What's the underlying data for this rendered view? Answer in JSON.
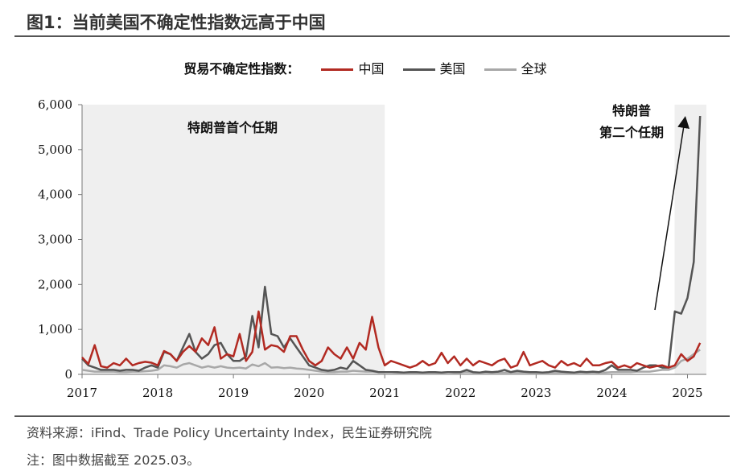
{
  "figure": {
    "title": "图1：当前美国不确定性指数远高于中国",
    "source": "资料来源：iFind、Trade Policy Uncertainty Index，民生证券研究院",
    "note": "注：图中数据截至 2025.03。"
  },
  "colors": {
    "china": "#b22a22",
    "usa": "#555555",
    "global": "#a8a8a8",
    "shade": "#efefef",
    "axis": "#777777"
  },
  "chart_data": {
    "type": "line",
    "title": "",
    "legend_title": "贸易不确定性指数：",
    "legend_position": "top",
    "xlabel": "",
    "ylabel": "",
    "xlim": [
      2017,
      2025.25
    ],
    "ylim": [
      0,
      6000
    ],
    "x_ticks": [
      2017,
      2018,
      2019,
      2020,
      2021,
      2022,
      2023,
      2024,
      2025
    ],
    "x_tick_labels": [
      "2017",
      "2018",
      "2019",
      "2020",
      "2021",
      "2022",
      "2023",
      "2024",
      "2025"
    ],
    "y_ticks": [
      0,
      1000,
      2000,
      3000,
      4000,
      5000,
      6000
    ],
    "y_tick_labels": [
      "0",
      "1,000",
      "2,000",
      "3,000",
      "4,000",
      "5,000",
      "6,000"
    ],
    "grid": false,
    "shaded_periods": [
      {
        "start": 2017.0,
        "end": 2021.0,
        "label": "特朗普首个任期"
      },
      {
        "start": 2024.83,
        "end": 2025.25,
        "label_lines": [
          "特朗普",
          "第二个任期"
        ]
      }
    ],
    "series": [
      {
        "name": "中国",
        "key": "china",
        "x": [
          2017.0,
          2017.083,
          2017.167,
          2017.25,
          2017.333,
          2017.417,
          2017.5,
          2017.583,
          2017.667,
          2017.75,
          2017.833,
          2017.917,
          2018.0,
          2018.083,
          2018.167,
          2018.25,
          2018.333,
          2018.417,
          2018.5,
          2018.583,
          2018.667,
          2018.75,
          2018.833,
          2018.917,
          2019.0,
          2019.083,
          2019.167,
          2019.25,
          2019.333,
          2019.417,
          2019.5,
          2019.583,
          2019.667,
          2019.75,
          2019.833,
          2019.917,
          2020.0,
          2020.083,
          2020.167,
          2020.25,
          2020.333,
          2020.417,
          2020.5,
          2020.583,
          2020.667,
          2020.75,
          2020.833,
          2020.917,
          2021.0,
          2021.083,
          2021.167,
          2021.25,
          2021.333,
          2021.417,
          2021.5,
          2021.583,
          2021.667,
          2021.75,
          2021.833,
          2021.917,
          2022.0,
          2022.083,
          2022.167,
          2022.25,
          2022.333,
          2022.417,
          2022.5,
          2022.583,
          2022.667,
          2022.75,
          2022.833,
          2022.917,
          2023.0,
          2023.083,
          2023.167,
          2023.25,
          2023.333,
          2023.417,
          2023.5,
          2023.583,
          2023.667,
          2023.75,
          2023.833,
          2023.917,
          2024.0,
          2024.083,
          2024.167,
          2024.25,
          2024.333,
          2024.417,
          2024.5,
          2024.583,
          2024.667,
          2024.75,
          2024.833,
          2024.917,
          2025.0,
          2025.083,
          2025.167
        ],
        "y": [
          380,
          230,
          650,
          180,
          150,
          250,
          200,
          350,
          200,
          250,
          280,
          260,
          200,
          520,
          450,
          300,
          500,
          630,
          500,
          800,
          650,
          1050,
          350,
          450,
          400,
          900,
          300,
          500,
          1400,
          550,
          650,
          620,
          500,
          850,
          850,
          550,
          300,
          200,
          300,
          600,
          450,
          350,
          600,
          350,
          700,
          550,
          1280,
          600,
          200,
          300,
          250,
          200,
          150,
          200,
          300,
          200,
          250,
          480,
          250,
          400,
          200,
          350,
          200,
          300,
          250,
          200,
          300,
          350,
          150,
          200,
          500,
          200,
          250,
          300,
          200,
          150,
          300,
          200,
          250,
          180,
          350,
          200,
          200,
          250,
          280,
          150,
          200,
          150,
          250,
          200,
          150,
          180,
          200,
          150,
          200,
          450,
          300,
          400,
          700
        ]
      },
      {
        "name": "美国",
        "key": "usa",
        "x": [
          2017.0,
          2017.083,
          2017.167,
          2017.25,
          2017.333,
          2017.417,
          2017.5,
          2017.583,
          2017.667,
          2017.75,
          2017.833,
          2017.917,
          2018.0,
          2018.083,
          2018.167,
          2018.25,
          2018.333,
          2018.417,
          2018.5,
          2018.583,
          2018.667,
          2018.75,
          2018.833,
          2018.917,
          2019.0,
          2019.083,
          2019.167,
          2019.25,
          2019.333,
          2019.417,
          2019.5,
          2019.583,
          2019.667,
          2019.75,
          2019.833,
          2019.917,
          2020.0,
          2020.083,
          2020.167,
          2020.25,
          2020.333,
          2020.417,
          2020.5,
          2020.583,
          2020.667,
          2020.75,
          2020.833,
          2020.917,
          2021.0,
          2021.083,
          2021.167,
          2021.25,
          2021.333,
          2021.417,
          2021.5,
          2021.583,
          2021.667,
          2021.75,
          2021.833,
          2021.917,
          2022.0,
          2022.083,
          2022.167,
          2022.25,
          2022.333,
          2022.417,
          2022.5,
          2022.583,
          2022.667,
          2022.75,
          2022.833,
          2022.917,
          2023.0,
          2023.083,
          2023.167,
          2023.25,
          2023.333,
          2023.417,
          2023.5,
          2023.583,
          2023.667,
          2023.75,
          2023.833,
          2023.917,
          2024.0,
          2024.083,
          2024.167,
          2024.25,
          2024.333,
          2024.417,
          2024.5,
          2024.583,
          2024.667,
          2024.75,
          2024.833,
          2024.917,
          2025.0,
          2025.083,
          2025.167
        ],
        "y": [
          350,
          200,
          150,
          100,
          100,
          100,
          80,
          100,
          100,
          80,
          150,
          200,
          150,
          500,
          450,
          300,
          600,
          900,
          500,
          350,
          450,
          650,
          700,
          450,
          300,
          300,
          400,
          1300,
          600,
          1950,
          900,
          850,
          600,
          800,
          600,
          400,
          200,
          150,
          100,
          80,
          100,
          150,
          120,
          300,
          200,
          100,
          80,
          50,
          50,
          50,
          50,
          40,
          50,
          50,
          40,
          50,
          50,
          40,
          50,
          50,
          50,
          100,
          50,
          40,
          60,
          50,
          60,
          100,
          50,
          80,
          60,
          50,
          50,
          40,
          50,
          80,
          60,
          50,
          40,
          60,
          50,
          60,
          50,
          100,
          200,
          100,
          100,
          100,
          80,
          150,
          200,
          200,
          150,
          150,
          1400,
          1350,
          1700,
          2500,
          5750
        ]
      },
      {
        "name": "全球",
        "key": "global",
        "x": [
          2017.0,
          2017.083,
          2017.167,
          2017.25,
          2017.333,
          2017.417,
          2017.5,
          2017.583,
          2017.667,
          2017.75,
          2017.833,
          2017.917,
          2018.0,
          2018.083,
          2018.167,
          2018.25,
          2018.333,
          2018.417,
          2018.5,
          2018.583,
          2018.667,
          2018.75,
          2018.833,
          2018.917,
          2019.0,
          2019.083,
          2019.167,
          2019.25,
          2019.333,
          2019.417,
          2019.5,
          2019.583,
          2019.667,
          2019.75,
          2019.833,
          2019.917,
          2020.0,
          2020.083,
          2020.167,
          2020.25,
          2020.333,
          2020.417,
          2020.5,
          2020.583,
          2020.667,
          2020.75,
          2020.833,
          2020.917,
          2021.0,
          2021.083,
          2021.167,
          2021.25,
          2021.333,
          2021.417,
          2021.5,
          2021.583,
          2021.667,
          2021.75,
          2021.833,
          2021.917,
          2022.0,
          2022.083,
          2022.167,
          2022.25,
          2022.333,
          2022.417,
          2022.5,
          2022.583,
          2022.667,
          2022.75,
          2022.833,
          2022.917,
          2023.0,
          2023.083,
          2023.167,
          2023.25,
          2023.333,
          2023.417,
          2023.5,
          2023.583,
          2023.667,
          2023.75,
          2023.833,
          2023.917,
          2024.0,
          2024.083,
          2024.167,
          2024.25,
          2024.333,
          2024.417,
          2024.5,
          2024.583,
          2024.667,
          2024.75,
          2024.833,
          2024.917,
          2025.0,
          2025.083,
          2025.167
        ],
        "y": [
          100,
          80,
          60,
          60,
          60,
          60,
          50,
          50,
          60,
          60,
          70,
          80,
          100,
          200,
          180,
          150,
          220,
          250,
          200,
          150,
          180,
          150,
          180,
          150,
          140,
          150,
          130,
          220,
          180,
          250,
          150,
          160,
          140,
          150,
          130,
          120,
          100,
          80,
          60,
          50,
          50,
          60,
          60,
          80,
          70,
          60,
          60,
          50,
          50,
          50,
          40,
          40,
          40,
          40,
          40,
          40,
          40,
          40,
          50,
          40,
          40,
          50,
          40,
          40,
          40,
          40,
          40,
          40,
          40,
          40,
          40,
          40,
          40,
          40,
          40,
          40,
          40,
          40,
          40,
          40,
          40,
          40,
          40,
          40,
          50,
          50,
          50,
          50,
          60,
          60,
          60,
          80,
          100,
          100,
          150,
          300,
          350,
          450,
          550
        ]
      }
    ]
  }
}
